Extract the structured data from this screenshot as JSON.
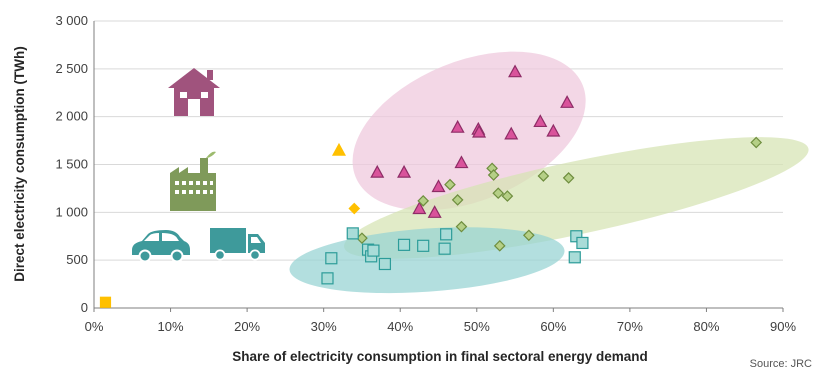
{
  "chart_data": {
    "type": "scatter",
    "title": "",
    "xlabel": "Share of electricity consumption in final sectoral energy demand",
    "ylabel": "Direct electricity consumption (TWh)",
    "xlim": [
      0,
      90
    ],
    "ylim": [
      0,
      3000
    ],
    "x_ticks": [
      "0%",
      "10%",
      "20%",
      "30%",
      "40%",
      "50%",
      "60%",
      "70%",
      "80%",
      "90%"
    ],
    "y_ticks": [
      "0",
      "500",
      "1 000",
      "1 500",
      "2 000",
      "2 500",
      "3 000"
    ],
    "grid": true,
    "legend": "icons (left side)",
    "source": "Source: JRC",
    "series": [
      {
        "sector": "residential",
        "marker": "triangle",
        "color": "#d9539b",
        "edge": "#8e2c66",
        "icon": "house-icon",
        "points": [
          [
            37.0,
            1420
          ],
          [
            40.5,
            1420
          ],
          [
            42.5,
            1040
          ],
          [
            44.5,
            1000
          ],
          [
            45.0,
            1270
          ],
          [
            47.5,
            1890
          ],
          [
            48.0,
            1520
          ],
          [
            50.2,
            1870
          ],
          [
            50.3,
            1840
          ],
          [
            54.5,
            1820
          ],
          [
            55.0,
            2470
          ],
          [
            58.3,
            1950
          ],
          [
            60.0,
            1850
          ],
          [
            61.8,
            2150
          ]
        ]
      },
      {
        "sector": "industry",
        "marker": "diamond",
        "color": "#b5cf86",
        "edge": "#6e8d3e",
        "icon": "factory-icon",
        "points": [
          [
            35.0,
            730
          ],
          [
            43.0,
            1120
          ],
          [
            46.5,
            1290
          ],
          [
            47.5,
            1130
          ],
          [
            48.0,
            850
          ],
          [
            52.0,
            1460
          ],
          [
            52.2,
            1390
          ],
          [
            52.8,
            1200
          ],
          [
            53.0,
            650
          ],
          [
            54.0,
            1170
          ],
          [
            56.8,
            760
          ],
          [
            58.7,
            1380
          ],
          [
            62.0,
            1360
          ],
          [
            86.5,
            1730
          ]
        ]
      },
      {
        "sector": "services and transport",
        "marker": "square",
        "color": "#a9dcd8",
        "edge": "#2d9c99",
        "icon": "car-and-truck-icons",
        "points": [
          [
            30.5,
            310
          ],
          [
            31.0,
            520
          ],
          [
            33.8,
            780
          ],
          [
            35.8,
            610
          ],
          [
            36.2,
            540
          ],
          [
            36.5,
            600
          ],
          [
            38.0,
            460
          ],
          [
            40.5,
            660
          ],
          [
            43.0,
            650
          ],
          [
            45.8,
            620
          ],
          [
            46.0,
            770
          ],
          [
            62.8,
            530
          ],
          [
            63.0,
            750
          ],
          [
            63.8,
            680
          ]
        ]
      },
      {
        "sector": "other",
        "marker": "diamond",
        "color": "#ffc000",
        "edge": "#ffc000",
        "points": [
          [
            34.0,
            1040
          ]
        ]
      },
      {
        "sector": "other",
        "marker": "triangle",
        "color": "#ffc000",
        "edge": "#ffc000",
        "points": [
          [
            32.0,
            1650
          ]
        ]
      },
      {
        "sector": "other",
        "marker": "square",
        "color": "#ffc000",
        "edge": "#ffc000",
        "points": [
          [
            1.5,
            60
          ]
        ]
      }
    ],
    "ellipses": [
      {
        "name": "residential-cluster",
        "cx": 49,
        "cy": 1850,
        "rx_data": 16,
        "ry_data": 730,
        "angle": -22,
        "fill": "#efc8dc"
      },
      {
        "name": "industry-cluster",
        "cx": 63,
        "cy": 1150,
        "rx_data": 31,
        "ry_data": 380,
        "angle": -12,
        "fill": "#d6e3b3"
      },
      {
        "name": "services-transport-cluster",
        "cx": 43.5,
        "cy": 500,
        "rx_data": 18,
        "ry_data": 330,
        "angle": -4,
        "fill": "#96d3d3"
      }
    ]
  }
}
